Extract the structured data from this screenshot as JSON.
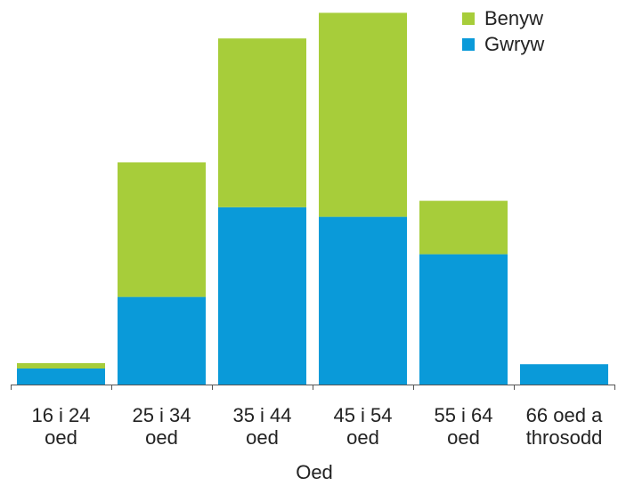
{
  "chart_data": {
    "type": "bar",
    "stacked": true,
    "categories": [
      [
        "16 i 24",
        "oed"
      ],
      [
        "25 i 34",
        "oed"
      ],
      [
        "35 i 44",
        "oed"
      ],
      [
        "45 i 54",
        "oed"
      ],
      [
        "55 i 64",
        "oed"
      ],
      [
        "66 oed a",
        "throsodd"
      ]
    ],
    "series": [
      {
        "name": "Gwryw",
        "color": "#0a9ad9",
        "values": [
          15,
          82,
          166,
          157,
          122,
          19
        ]
      },
      {
        "name": "Benyw",
        "color": "#a7cd3a",
        "values": [
          5,
          126,
          158,
          191,
          50,
          0
        ]
      }
    ],
    "title": "",
    "xlabel": "Oed",
    "ylabel": "",
    "ylim": [
      0,
      360
    ],
    "grid": false,
    "legend_position": "top-right"
  }
}
